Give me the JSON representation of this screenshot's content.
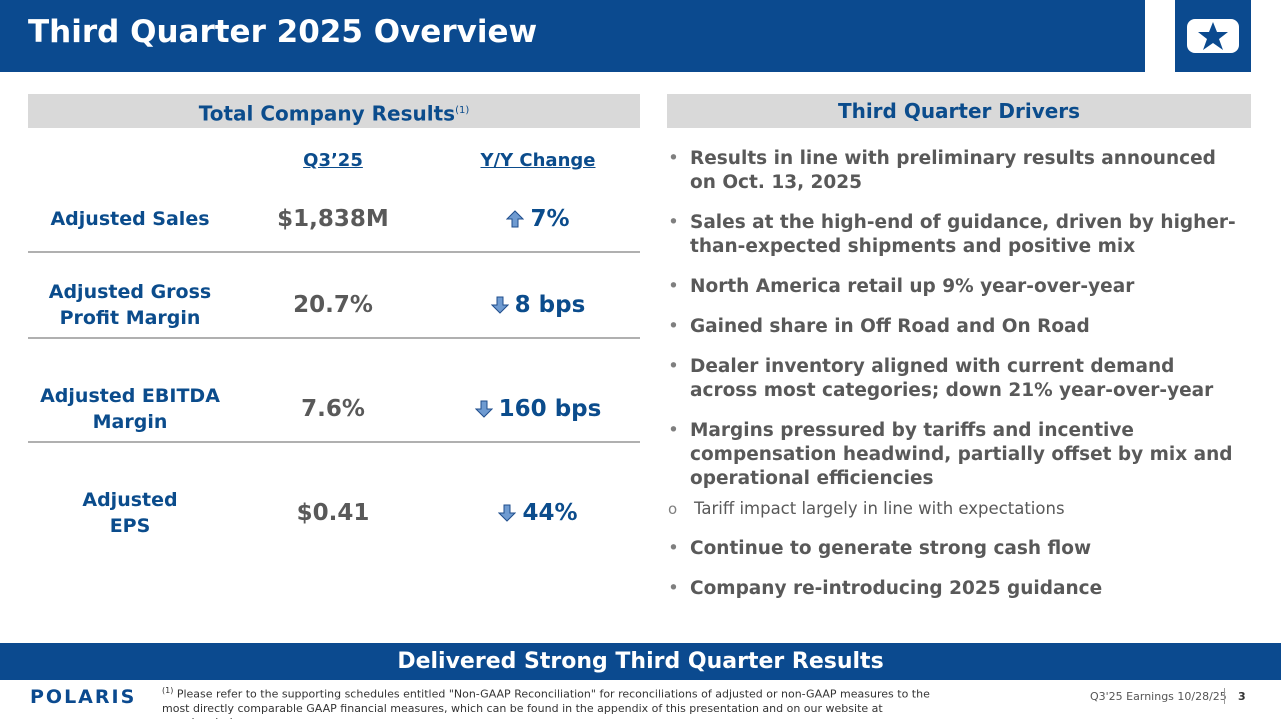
{
  "header": {
    "title": "Third Quarter 2025 Overview"
  },
  "left": {
    "heading": "Total Company Results",
    "heading_note": "(1)",
    "columns": [
      "Q3’25",
      "Y/Y Change"
    ],
    "rows": [
      {
        "label": [
          "Adjusted Sales"
        ],
        "value": "$1,838M",
        "direction": "up",
        "change": "7%"
      },
      {
        "label": [
          "Adjusted Gross",
          "Profit Margin"
        ],
        "value": "20.7%",
        "direction": "down",
        "change": "8 bps"
      },
      {
        "label": [
          "Adjusted EBITDA",
          "Margin"
        ],
        "value": "7.6%",
        "direction": "down",
        "change": "160 bps"
      },
      {
        "label": [
          "Adjusted",
          "EPS"
        ],
        "value": "$0.41",
        "direction": "down",
        "change": "44%"
      }
    ]
  },
  "right": {
    "heading": "Third Quarter Drivers",
    "bullets": [
      {
        "text": "Results in line with preliminary results announced on Oct. 13, 2025"
      },
      {
        "text": "Sales at the high-end of guidance, driven by higher-than-expected shipments and positive mix"
      },
      {
        "text": "North America retail up 9% year-over-year"
      },
      {
        "text": "Gained share in Off Road and On Road"
      },
      {
        "text": "Dealer inventory aligned with current demand across most categories; down 21% year-over-year"
      },
      {
        "text": "Margins pressured by tariffs and incentive compensation headwind, partially offset by mix and operational efficiencies",
        "sub": [
          "Tariff impact largely in line with expectations"
        ]
      },
      {
        "text": "Continue to generate strong cash flow"
      },
      {
        "text": "Company re-introducing 2025 guidance"
      }
    ]
  },
  "banner": "Delivered Strong Third Quarter Results",
  "footer": {
    "logo": "POLARIS",
    "note_marker": "(1)",
    "note": "Please refer to the supporting schedules entitled \"Non-GAAP Reconciliation\" for reconciliations of adjusted or non-GAAP measures to the most directly comparable GAAP financial measures, which can be found in the appendix of this presentation and on our website at www.ir.polaris.com.",
    "date": "Q3'25 Earnings 10/28/25",
    "page": "3"
  }
}
